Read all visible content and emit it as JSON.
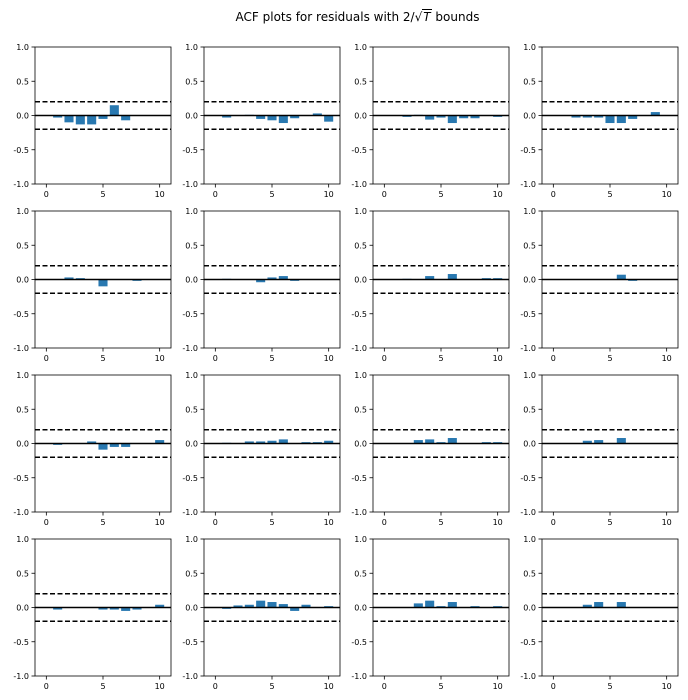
{
  "figure": {
    "title_prefix": "ACF plots for residuals with 2/",
    "title_radical": "√",
    "title_variable": "T",
    "title_suffix": " bounds"
  },
  "colors": {
    "bar": "#2878b0",
    "axis": "#000000",
    "bound": "#000000"
  },
  "chart_data": [
    {
      "type": "bar",
      "x": [
        1,
        2,
        3,
        4,
        5,
        6,
        7,
        8,
        9,
        10
      ],
      "values": [
        -0.03,
        -0.1,
        -0.13,
        -0.13,
        -0.05,
        0.15,
        -0.07,
        0,
        0,
        0
      ],
      "bounds": [
        0.2,
        -0.2
      ],
      "xlim": [
        -1,
        11
      ],
      "ylim": [
        -1,
        1
      ],
      "xticks": [
        0,
        5,
        10
      ],
      "yticks": [
        -1.0,
        -0.5,
        0.0,
        0.5,
        1.0
      ],
      "grid": false
    },
    {
      "type": "bar",
      "x": [
        1,
        2,
        3,
        4,
        5,
        6,
        7,
        8,
        9,
        10
      ],
      "values": [
        -0.03,
        0,
        0.01,
        -0.05,
        -0.07,
        -0.11,
        -0.04,
        0,
        0.03,
        -0.09
      ],
      "bounds": [
        0.2,
        -0.2
      ],
      "xlim": [
        -1,
        11
      ],
      "ylim": [
        -1,
        1
      ],
      "xticks": [
        0,
        5,
        10
      ],
      "yticks": [
        -1.0,
        -0.5,
        0.0,
        0.5,
        1.0
      ],
      "grid": false
    },
    {
      "type": "bar",
      "x": [
        1,
        2,
        3,
        4,
        5,
        6,
        7,
        8,
        9,
        10
      ],
      "values": [
        0,
        -0.02,
        0.01,
        -0.06,
        -0.03,
        -0.11,
        -0.04,
        -0.04,
        0,
        -0.02
      ],
      "bounds": [
        0.2,
        -0.2
      ],
      "xlim": [
        -1,
        11
      ],
      "ylim": [
        -1,
        1
      ],
      "xticks": [
        0,
        5,
        10
      ],
      "yticks": [
        -1.0,
        -0.5,
        0.0,
        0.5,
        1.0
      ],
      "grid": false
    },
    {
      "type": "bar",
      "x": [
        1,
        2,
        3,
        4,
        5,
        6,
        7,
        8,
        9,
        10
      ],
      "values": [
        0,
        -0.03,
        -0.03,
        -0.03,
        -0.11,
        -0.11,
        -0.05,
        0,
        0.05,
        0
      ],
      "bounds": [
        0.2,
        -0.2
      ],
      "xlim": [
        -1,
        11
      ],
      "ylim": [
        -1,
        1
      ],
      "xticks": [
        0,
        5,
        10
      ],
      "yticks": [
        -1.0,
        -0.5,
        0.0,
        0.5,
        1.0
      ],
      "grid": false
    },
    {
      "type": "bar",
      "x": [
        1,
        2,
        3,
        4,
        5,
        6,
        7,
        8,
        9,
        10
      ],
      "values": [
        0,
        0.03,
        0.02,
        0,
        -0.1,
        0,
        0,
        -0.02,
        0,
        0
      ],
      "bounds": [
        0.2,
        -0.2
      ],
      "xlim": [
        -1,
        11
      ],
      "ylim": [
        -1,
        1
      ],
      "xticks": [
        0,
        5,
        10
      ],
      "yticks": [
        -1.0,
        -0.5,
        0.0,
        0.5,
        1.0
      ],
      "grid": false
    },
    {
      "type": "bar",
      "x": [
        1,
        2,
        3,
        4,
        5,
        6,
        7,
        8,
        9,
        10
      ],
      "values": [
        0.01,
        0,
        0,
        -0.04,
        0.03,
        0.05,
        -0.02,
        0,
        0,
        0
      ],
      "bounds": [
        0.2,
        -0.2
      ],
      "xlim": [
        -1,
        11
      ],
      "ylim": [
        -1,
        1
      ],
      "xticks": [
        0,
        5,
        10
      ],
      "yticks": [
        -1.0,
        -0.5,
        0.0,
        0.5,
        1.0
      ],
      "grid": false
    },
    {
      "type": "bar",
      "x": [
        1,
        2,
        3,
        4,
        5,
        6,
        7,
        8,
        9,
        10
      ],
      "values": [
        0,
        0.01,
        0,
        0.05,
        0,
        0.08,
        0,
        0,
        0.02,
        0.02
      ],
      "bounds": [
        0.2,
        -0.2
      ],
      "xlim": [
        -1,
        11
      ],
      "ylim": [
        -1,
        1
      ],
      "xticks": [
        0,
        5,
        10
      ],
      "yticks": [
        -1.0,
        -0.5,
        0.0,
        0.5,
        1.0
      ],
      "grid": false
    },
    {
      "type": "bar",
      "x": [
        1,
        2,
        3,
        4,
        5,
        6,
        7,
        8,
        9,
        10
      ],
      "values": [
        0,
        0,
        0,
        0,
        0,
        0.07,
        -0.02,
        0,
        0,
        0
      ],
      "bounds": [
        0.2,
        -0.2
      ],
      "xlim": [
        -1,
        11
      ],
      "ylim": [
        -1,
        1
      ],
      "xticks": [
        0,
        5,
        10
      ],
      "yticks": [
        -1.0,
        -0.5,
        0.0,
        0.5,
        1.0
      ],
      "grid": false
    },
    {
      "type": "bar",
      "x": [
        1,
        2,
        3,
        4,
        5,
        6,
        7,
        8,
        9,
        10
      ],
      "values": [
        -0.02,
        0,
        0,
        0.03,
        -0.09,
        -0.05,
        -0.05,
        0,
        0,
        0.05
      ],
      "bounds": [
        0.2,
        -0.2
      ],
      "xlim": [
        -1,
        11
      ],
      "ylim": [
        -1,
        1
      ],
      "xticks": [
        0,
        5,
        10
      ],
      "yticks": [
        -1.0,
        -0.5,
        0.0,
        0.5,
        1.0
      ],
      "grid": false
    },
    {
      "type": "bar",
      "x": [
        1,
        2,
        3,
        4,
        5,
        6,
        7,
        8,
        9,
        10
      ],
      "values": [
        0.01,
        0,
        0.03,
        0.03,
        0.04,
        0.06,
        0,
        0.02,
        0.02,
        0.04
      ],
      "bounds": [
        0.2,
        -0.2
      ],
      "xlim": [
        -1,
        11
      ],
      "ylim": [
        -1,
        1
      ],
      "xticks": [
        0,
        5,
        10
      ],
      "yticks": [
        -1.0,
        -0.5,
        0.0,
        0.5,
        1.0
      ],
      "grid": false
    },
    {
      "type": "bar",
      "x": [
        1,
        2,
        3,
        4,
        5,
        6,
        7,
        8,
        9,
        10
      ],
      "values": [
        0,
        0,
        0.05,
        0.06,
        0.02,
        0.08,
        0,
        0,
        0.02,
        0.02
      ],
      "bounds": [
        0.2,
        -0.2
      ],
      "xlim": [
        -1,
        11
      ],
      "ylim": [
        -1,
        1
      ],
      "xticks": [
        0,
        5,
        10
      ],
      "yticks": [
        -1.0,
        -0.5,
        0.0,
        0.5,
        1.0
      ],
      "grid": false
    },
    {
      "type": "bar",
      "x": [
        1,
        2,
        3,
        4,
        5,
        6,
        7,
        8,
        9,
        10
      ],
      "values": [
        0,
        0,
        0.04,
        0.05,
        0,
        0.08,
        0,
        0,
        0,
        0
      ],
      "bounds": [
        0.2,
        -0.2
      ],
      "xlim": [
        -1,
        11
      ],
      "ylim": [
        -1,
        1
      ],
      "xticks": [
        0,
        5,
        10
      ],
      "yticks": [
        -1.0,
        -0.5,
        0.0,
        0.5,
        1.0
      ],
      "grid": false
    },
    {
      "type": "bar",
      "x": [
        1,
        2,
        3,
        4,
        5,
        6,
        7,
        8,
        9,
        10
      ],
      "values": [
        -0.03,
        0,
        0,
        0,
        -0.03,
        -0.03,
        -0.05,
        -0.03,
        0,
        0.04
      ],
      "bounds": [
        0.2,
        -0.2
      ],
      "xlim": [
        -1,
        11
      ],
      "ylim": [
        -1,
        1
      ],
      "xticks": [
        0,
        5,
        10
      ],
      "yticks": [
        -1.0,
        -0.5,
        0.0,
        0.5,
        1.0
      ],
      "grid": false
    },
    {
      "type": "bar",
      "x": [
        1,
        2,
        3,
        4,
        5,
        6,
        7,
        8,
        9,
        10
      ],
      "values": [
        -0.02,
        0.03,
        0.04,
        0.1,
        0.08,
        0.05,
        -0.05,
        0.04,
        0,
        0.02
      ],
      "bounds": [
        0.2,
        -0.2
      ],
      "xlim": [
        -1,
        11
      ],
      "ylim": [
        -1,
        1
      ],
      "xticks": [
        0,
        5,
        10
      ],
      "yticks": [
        -1.0,
        -0.5,
        0.0,
        0.5,
        1.0
      ],
      "grid": false
    },
    {
      "type": "bar",
      "x": [
        1,
        2,
        3,
        4,
        5,
        6,
        7,
        8,
        9,
        10
      ],
      "values": [
        0,
        0,
        0.06,
        0.1,
        0.02,
        0.08,
        0,
        0.02,
        0,
        0.02
      ],
      "bounds": [
        0.2,
        -0.2
      ],
      "xlim": [
        -1,
        11
      ],
      "ylim": [
        -1,
        1
      ],
      "xticks": [
        0,
        5,
        10
      ],
      "yticks": [
        -1.0,
        -0.5,
        0.0,
        0.5,
        1.0
      ],
      "grid": false
    },
    {
      "type": "bar",
      "x": [
        1,
        2,
        3,
        4,
        5,
        6,
        7,
        8,
        9,
        10
      ],
      "values": [
        0,
        0,
        0.04,
        0.08,
        0,
        0.08,
        0,
        0,
        0,
        0
      ],
      "bounds": [
        0.2,
        -0.2
      ],
      "xlim": [
        -1,
        11
      ],
      "ylim": [
        -1,
        1
      ],
      "xticks": [
        0,
        5,
        10
      ],
      "yticks": [
        -1.0,
        -0.5,
        0.0,
        0.5,
        1.0
      ],
      "grid": false
    }
  ]
}
